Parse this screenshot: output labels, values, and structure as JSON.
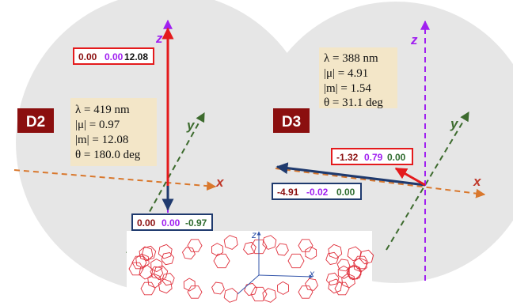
{
  "panels": [
    {
      "id": "D2",
      "badge": "D2",
      "info_lines": [
        "λ = 419 nm",
        "|μ| = 0.97",
        "|m| = 12.08",
        "θ = 180.0 deg"
      ],
      "m_vector_box": {
        "x": "0.00",
        "y": "0.00",
        "z": "12.08",
        "border": "#e41a1c"
      },
      "mu_vector_box": {
        "x": "0.00",
        "y": "0.00",
        "z": "-0.97",
        "border": "#1f3a6e"
      }
    },
    {
      "id": "D3",
      "badge": "D3",
      "info_lines": [
        "λ = 388 nm",
        "|μ| = 4.91",
        "|m| = 1.54",
        "θ = 31.1 deg"
      ],
      "m_vector_box": {
        "x": "-1.32",
        "y": "0.79",
        "z": "0.00",
        "border": "#e41a1c"
      },
      "mu_vector_box": {
        "x": "-4.91",
        "y": "-0.02",
        "z": "0.00",
        "border": "#1f3a6e"
      }
    }
  ],
  "axis_labels": {
    "x": "x",
    "y": "y",
    "z": "z"
  },
  "molecule_axis_labels": {
    "z": "z",
    "x": "x"
  },
  "colors": {
    "circle_fill": "#e6e6e6",
    "x_axis": "#d9782d",
    "y_axis": "#3d6b2e",
    "z_axis": "#a020f0",
    "m_vector": "#e41a1c",
    "mu_vector": "#1f3a6e",
    "badge_bg": "#8b0f0f",
    "info_bg": "#f3e6c8",
    "x_component": "#8b0f0f",
    "y_component": "#a020f0",
    "z_component": "#2e6b2e",
    "molecule": "#e0303c"
  }
}
